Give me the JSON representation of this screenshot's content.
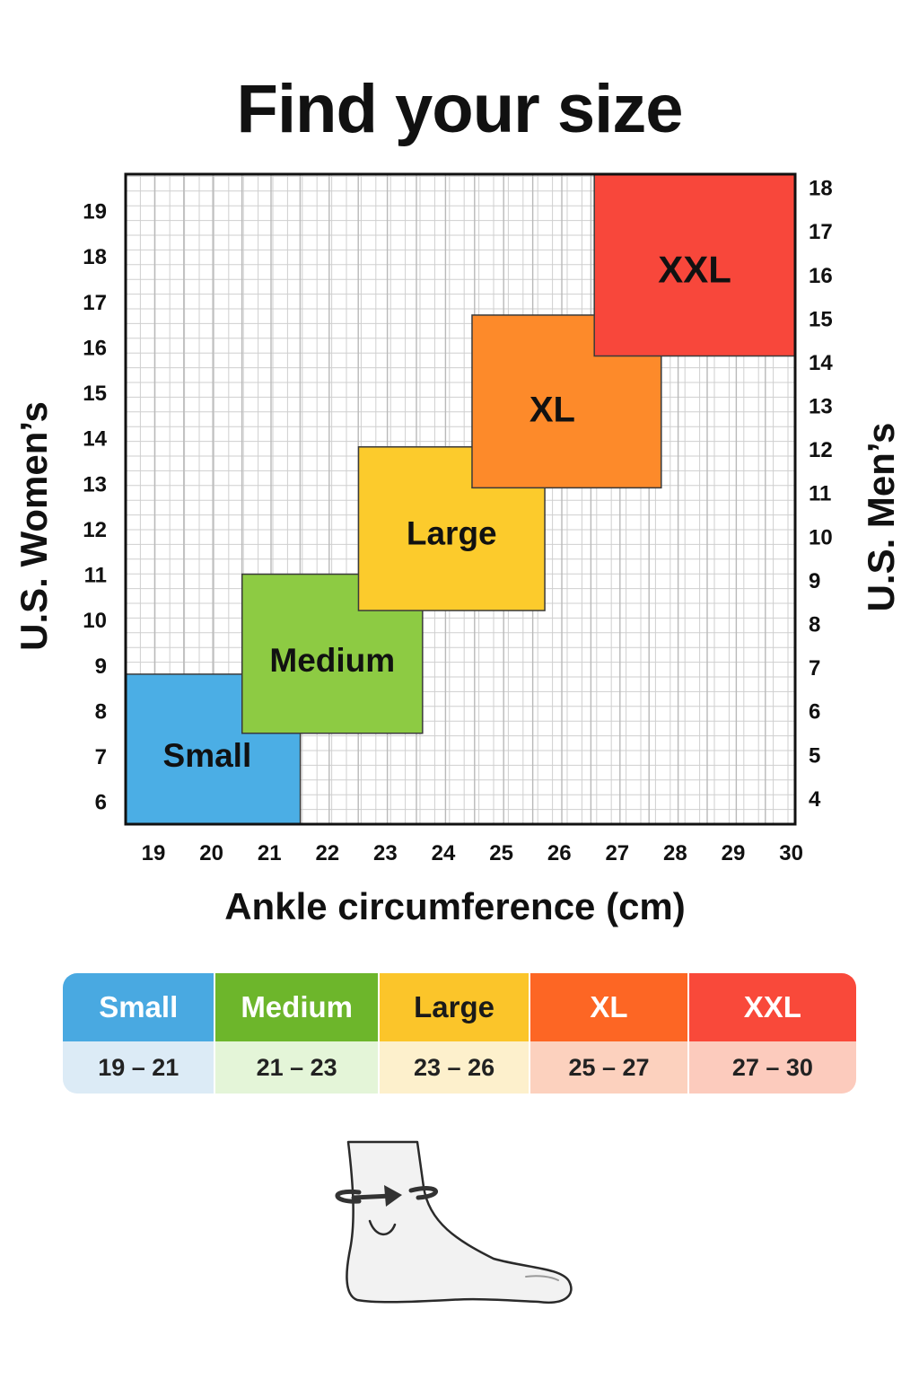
{
  "page": {
    "title": "Find your size"
  },
  "chart_data": {
    "type": "heatmap",
    "title": "Find your size",
    "xlabel": "Ankle circumference (cm)",
    "ylabel_left": "U.S. Women’s",
    "ylabel_right": "U.S. Men’s",
    "x_ticks": [
      19,
      20,
      21,
      22,
      23,
      24,
      25,
      26,
      27,
      28,
      29,
      30
    ],
    "y_left_ticks": [
      6,
      7,
      8,
      9,
      10,
      11,
      12,
      13,
      14,
      15,
      16,
      17,
      18,
      19
    ],
    "y_right_ticks": [
      4,
      5,
      6,
      7,
      8,
      9,
      10,
      11,
      12,
      13,
      14,
      15,
      16,
      17,
      18
    ],
    "xlim": [
      18.5,
      30
    ],
    "ylim_left": [
      5.5,
      19.8
    ],
    "ylim_right": [
      3.4,
      18.3
    ],
    "grid": true,
    "regions": [
      {
        "label": "Small",
        "x_range": [
          18.5,
          21.5
        ],
        "women_range": [
          5.5,
          8.8
        ],
        "color": "#4BAEE5"
      },
      {
        "label": "Medium",
        "x_range": [
          20.5,
          23.6
        ],
        "women_range": [
          7.5,
          11.0
        ],
        "color": "#8DCB43"
      },
      {
        "label": "Large",
        "x_range": [
          22.5,
          25.7
        ],
        "women_range": [
          10.2,
          13.8
        ],
        "color": "#FCCB2C"
      },
      {
        "label": "XL",
        "x_range": [
          24.45,
          27.7
        ],
        "women_range": [
          12.9,
          16.7
        ],
        "color": "#FD8A2A"
      },
      {
        "label": "XXL",
        "x_range": [
          26.55,
          30
        ],
        "women_range": [
          15.8,
          19.8
        ],
        "color": "#F8473B"
      }
    ]
  },
  "size_table": [
    {
      "size": "Small",
      "range": "19 – 21",
      "head_color": "#49A9E1",
      "body_color": "#DCEBF6"
    },
    {
      "size": "Medium",
      "range": "21 – 23",
      "head_color": "#6DB62B",
      "body_color": "#E4F5D8"
    },
    {
      "size": "Large",
      "range": "23 – 26",
      "head_color": "#FBC52A",
      "body_color": "#FDF0CC"
    },
    {
      "size": "XL",
      "range": "25 – 27",
      "head_color": "#FD6624",
      "body_color": "#FCD1BE"
    },
    {
      "size": "XXL",
      "range": "27 – 30",
      "head_color": "#F9493A",
      "body_color": "#FCCBBD"
    }
  ],
  "illustration": {
    "icon": "foot-ankle-measure-icon"
  }
}
